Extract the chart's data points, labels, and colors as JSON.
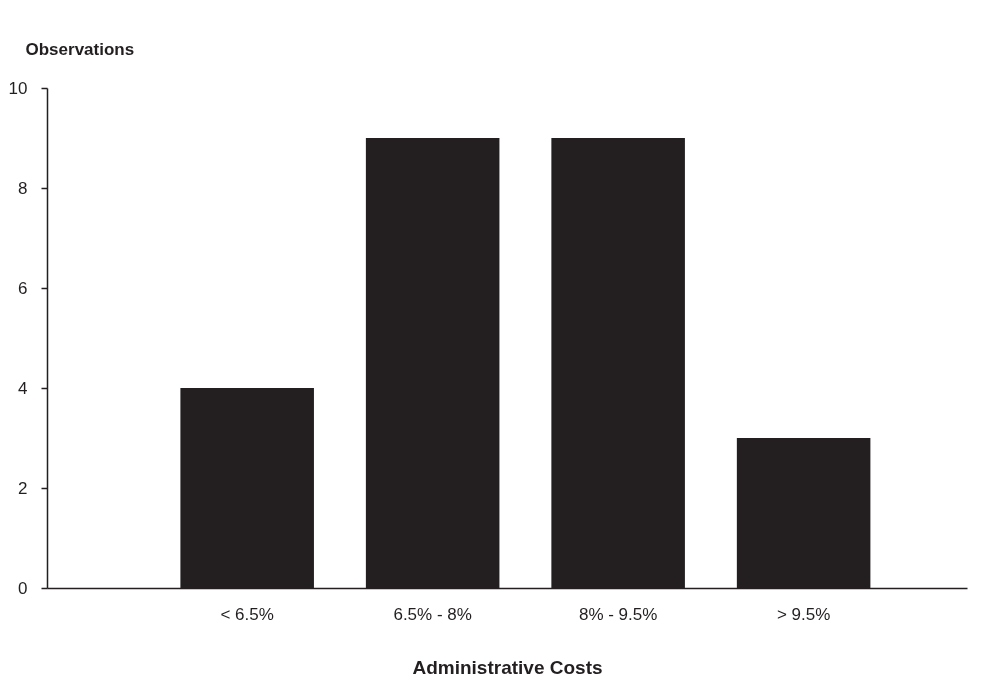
{
  "chart_data": {
    "type": "bar",
    "ylabel": "Observations",
    "xlabel": "Administrative Costs",
    "categories": [
      "< 6.5%",
      "6.5% - 8%",
      "8% - 9.5%",
      "> 9.5%"
    ],
    "values": [
      4,
      9,
      9,
      3
    ],
    "color": "#231f20",
    "ylim": [
      0,
      10
    ],
    "yticks": [
      0,
      2,
      4,
      6,
      8,
      10
    ]
  }
}
